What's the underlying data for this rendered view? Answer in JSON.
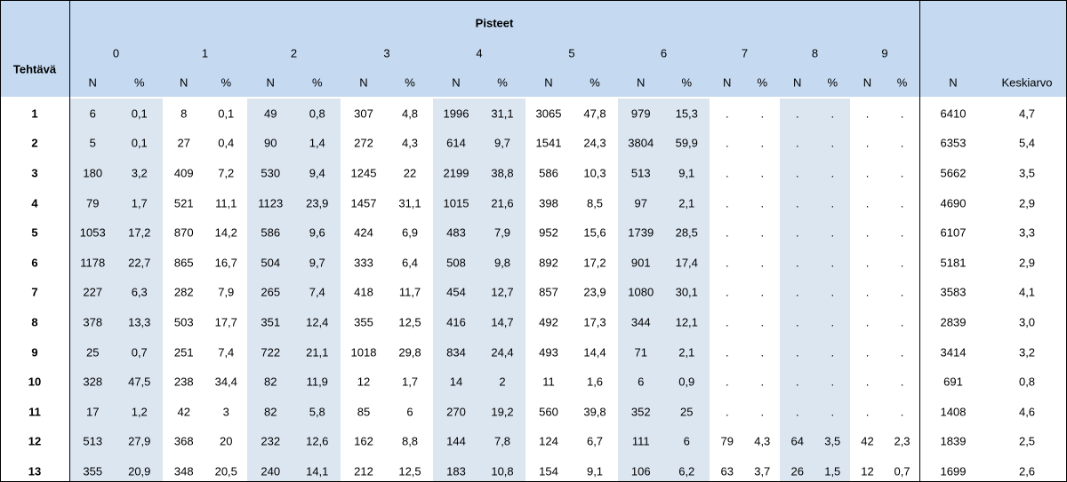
{
  "header": {
    "title": "Pisteet",
    "row_label": "Tehtävä",
    "groups": [
      "0",
      "1",
      "2",
      "3",
      "4",
      "5",
      "6",
      "7",
      "8",
      "9"
    ],
    "sub": [
      "N",
      "%"
    ],
    "total": "N",
    "mean": "Keskiarvo"
  },
  "rows": [
    [
      "1",
      "6",
      "0,1",
      "8",
      "0,1",
      "49",
      "0,8",
      "307",
      "4,8",
      "1996",
      "31,1",
      "3065",
      "47,8",
      "979",
      "15,3",
      ".",
      ".",
      ".",
      ".",
      ".",
      ".",
      "6410",
      "4,7"
    ],
    [
      "2",
      "5",
      "0,1",
      "27",
      "0,4",
      "90",
      "1,4",
      "272",
      "4,3",
      "614",
      "9,7",
      "1541",
      "24,3",
      "3804",
      "59,9",
      ".",
      ".",
      ".",
      ".",
      ".",
      ".",
      "6353",
      "5,4"
    ],
    [
      "3",
      "180",
      "3,2",
      "409",
      "7,2",
      "530",
      "9,4",
      "1245",
      "22",
      "2199",
      "38,8",
      "586",
      "10,3",
      "513",
      "9,1",
      ".",
      ".",
      ".",
      ".",
      ".",
      ".",
      "5662",
      "3,5"
    ],
    [
      "4",
      "79",
      "1,7",
      "521",
      "11,1",
      "1123",
      "23,9",
      "1457",
      "31,1",
      "1015",
      "21,6",
      "398",
      "8,5",
      "97",
      "2,1",
      ".",
      ".",
      ".",
      ".",
      ".",
      ".",
      "4690",
      "2,9"
    ],
    [
      "5",
      "1053",
      "17,2",
      "870",
      "14,2",
      "586",
      "9,6",
      "424",
      "6,9",
      "483",
      "7,9",
      "952",
      "15,6",
      "1739",
      "28,5",
      ".",
      ".",
      ".",
      ".",
      ".",
      ".",
      "6107",
      "3,3"
    ],
    [
      "6",
      "1178",
      "22,7",
      "865",
      "16,7",
      "504",
      "9,7",
      "333",
      "6,4",
      "508",
      "9,8",
      "892",
      "17,2",
      "901",
      "17,4",
      ".",
      ".",
      ".",
      ".",
      ".",
      ".",
      "5181",
      "2,9"
    ],
    [
      "7",
      "227",
      "6,3",
      "282",
      "7,9",
      "265",
      "7,4",
      "418",
      "11,7",
      "454",
      "12,7",
      "857",
      "23,9",
      "1080",
      "30,1",
      ".",
      ".",
      ".",
      ".",
      ".",
      ".",
      "3583",
      "4,1"
    ],
    [
      "8",
      "378",
      "13,3",
      "503",
      "17,7",
      "351",
      "12,4",
      "355",
      "12,5",
      "416",
      "14,7",
      "492",
      "17,3",
      "344",
      "12,1",
      ".",
      ".",
      ".",
      ".",
      ".",
      ".",
      "2839",
      "3,0"
    ],
    [
      "9",
      "25",
      "0,7",
      "251",
      "7,4",
      "722",
      "21,1",
      "1018",
      "29,8",
      "834",
      "24,4",
      "493",
      "14,4",
      "71",
      "2,1",
      ".",
      ".",
      ".",
      ".",
      ".",
      ".",
      "3414",
      "3,2"
    ],
    [
      "10",
      "328",
      "47,5",
      "238",
      "34,4",
      "82",
      "11,9",
      "12",
      "1,7",
      "14",
      "2",
      "11",
      "1,6",
      "6",
      "0,9",
      ".",
      ".",
      ".",
      ".",
      ".",
      ".",
      "691",
      "0,8"
    ],
    [
      "11",
      "17",
      "1,2",
      "42",
      "3",
      "82",
      "5,8",
      "85",
      "6",
      "270",
      "19,2",
      "560",
      "39,8",
      "352",
      "25",
      ".",
      ".",
      ".",
      ".",
      ".",
      ".",
      "1408",
      "4,6"
    ],
    [
      "12",
      "513",
      "27,9",
      "368",
      "20",
      "232",
      "12,6",
      "162",
      "8,8",
      "144",
      "7,8",
      "124",
      "6,7",
      "111",
      "6",
      "79",
      "4,3",
      "64",
      "3,5",
      "42",
      "2,3",
      "1839",
      "2,5"
    ],
    [
      "13",
      "355",
      "20,9",
      "348",
      "20,5",
      "240",
      "14,1",
      "212",
      "12,5",
      "183",
      "10,8",
      "154",
      "9,1",
      "106",
      "6,2",
      "63",
      "3,7",
      "26",
      "1,5",
      "12",
      "0,7",
      "1699",
      "2,6"
    ]
  ]
}
